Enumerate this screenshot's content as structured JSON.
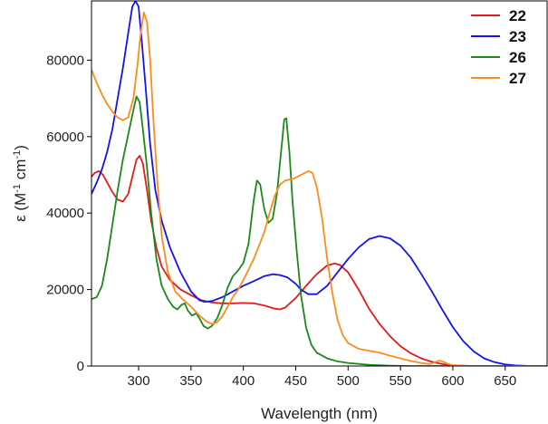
{
  "chart_data": {
    "type": "line",
    "title": "",
    "xlabel": "Wavelength (nm)",
    "ylabel": {
      "prefix": "ε (M",
      "sup1": "-1",
      "mid": " cm",
      "sup2": "-1",
      "suffix": ")"
    },
    "xlim": [
      255,
      690
    ],
    "ylim": [
      0,
      95500
    ],
    "xticks": [
      300,
      350,
      400,
      450,
      500,
      550,
      600,
      650
    ],
    "yticks": [
      0,
      20000,
      40000,
      60000,
      80000
    ],
    "grid": false,
    "legend_position": "top-right",
    "series": [
      {
        "name": "22",
        "color": "#e41a1c",
        "points": [
          [
            255,
            49500
          ],
          [
            258,
            50500
          ],
          [
            262,
            51000
          ],
          [
            266,
            50000
          ],
          [
            270,
            48000
          ],
          [
            275,
            45500
          ],
          [
            280,
            43500
          ],
          [
            285,
            43000
          ],
          [
            290,
            45000
          ],
          [
            294,
            49500
          ],
          [
            298,
            54000
          ],
          [
            301,
            55000
          ],
          [
            304,
            53000
          ],
          [
            308,
            46000
          ],
          [
            312,
            38000
          ],
          [
            317,
            31000
          ],
          [
            322,
            26000
          ],
          [
            330,
            22500
          ],
          [
            340,
            20000
          ],
          [
            350,
            18500
          ],
          [
            360,
            17200
          ],
          [
            370,
            16600
          ],
          [
            380,
            16400
          ],
          [
            390,
            16400
          ],
          [
            400,
            16500
          ],
          [
            410,
            16400
          ],
          [
            420,
            15800
          ],
          [
            430,
            15000
          ],
          [
            435,
            14800
          ],
          [
            440,
            15300
          ],
          [
            450,
            17800
          ],
          [
            460,
            21000
          ],
          [
            470,
            24000
          ],
          [
            480,
            26300
          ],
          [
            487,
            26800
          ],
          [
            492,
            26500
          ],
          [
            500,
            24500
          ],
          [
            510,
            20000
          ],
          [
            520,
            15000
          ],
          [
            530,
            11000
          ],
          [
            540,
            7800
          ],
          [
            550,
            5200
          ],
          [
            560,
            3300
          ],
          [
            570,
            2000
          ],
          [
            580,
            1100
          ],
          [
            590,
            500
          ],
          [
            600,
            200
          ],
          [
            620,
            0
          ],
          [
            690,
            0
          ]
        ]
      },
      {
        "name": "23",
        "color": "#1414e6",
        "points": [
          [
            255,
            45000
          ],
          [
            260,
            48000
          ],
          [
            265,
            51500
          ],
          [
            270,
            56000
          ],
          [
            275,
            62000
          ],
          [
            280,
            70000
          ],
          [
            285,
            78000
          ],
          [
            290,
            87000
          ],
          [
            294,
            94000
          ],
          [
            297,
            95500
          ],
          [
            300,
            94000
          ],
          [
            303,
            85000
          ],
          [
            307,
            72000
          ],
          [
            311,
            58000
          ],
          [
            316,
            46000
          ],
          [
            322,
            38000
          ],
          [
            330,
            31000
          ],
          [
            340,
            24500
          ],
          [
            350,
            19500
          ],
          [
            358,
            17200
          ],
          [
            363,
            16800
          ],
          [
            370,
            17000
          ],
          [
            380,
            18000
          ],
          [
            390,
            19500
          ],
          [
            400,
            21000
          ],
          [
            410,
            22200
          ],
          [
            420,
            23500
          ],
          [
            428,
            24000
          ],
          [
            435,
            23800
          ],
          [
            442,
            23200
          ],
          [
            450,
            21500
          ],
          [
            455,
            20000
          ],
          [
            462,
            18800
          ],
          [
            470,
            18800
          ],
          [
            480,
            21000
          ],
          [
            490,
            24500
          ],
          [
            500,
            28000
          ],
          [
            510,
            31000
          ],
          [
            520,
            33200
          ],
          [
            530,
            34000
          ],
          [
            540,
            33400
          ],
          [
            550,
            31500
          ],
          [
            560,
            28300
          ],
          [
            570,
            24000
          ],
          [
            580,
            19500
          ],
          [
            590,
            14700
          ],
          [
            600,
            10200
          ],
          [
            610,
            6500
          ],
          [
            620,
            3800
          ],
          [
            630,
            2000
          ],
          [
            640,
            1000
          ],
          [
            650,
            400
          ],
          [
            660,
            150
          ],
          [
            670,
            50
          ],
          [
            690,
            0
          ]
        ]
      },
      {
        "name": "26",
        "color": "#1a8a1a",
        "points": [
          [
            255,
            17500
          ],
          [
            260,
            18000
          ],
          [
            265,
            21000
          ],
          [
            270,
            28000
          ],
          [
            275,
            37000
          ],
          [
            280,
            46000
          ],
          [
            285,
            54000
          ],
          [
            290,
            60500
          ],
          [
            295,
            67000
          ],
          [
            298,
            70500
          ],
          [
            301,
            69000
          ],
          [
            304,
            62000
          ],
          [
            308,
            52000
          ],
          [
            312,
            40000
          ],
          [
            317,
            28000
          ],
          [
            322,
            21000
          ],
          [
            328,
            17500
          ],
          [
            333,
            15500
          ],
          [
            337,
            14800
          ],
          [
            341,
            16000
          ],
          [
            344,
            16400
          ],
          [
            347,
            14500
          ],
          [
            351,
            13200
          ],
          [
            355,
            13800
          ],
          [
            358,
            12500
          ],
          [
            362,
            10500
          ],
          [
            366,
            9800
          ],
          [
            370,
            10500
          ],
          [
            375,
            12500
          ],
          [
            380,
            16000
          ],
          [
            385,
            20500
          ],
          [
            390,
            23500
          ],
          [
            395,
            25000
          ],
          [
            400,
            27000
          ],
          [
            405,
            32000
          ],
          [
            410,
            43500
          ],
          [
            413,
            48500
          ],
          [
            416,
            47500
          ],
          [
            420,
            41000
          ],
          [
            424,
            37500
          ],
          [
            428,
            38500
          ],
          [
            432,
            45000
          ],
          [
            436,
            56000
          ],
          [
            439,
            64500
          ],
          [
            441,
            64800
          ],
          [
            444,
            56000
          ],
          [
            447,
            43000
          ],
          [
            451,
            30000
          ],
          [
            455,
            18500
          ],
          [
            460,
            10000
          ],
          [
            465,
            5500
          ],
          [
            470,
            3500
          ],
          [
            480,
            2000
          ],
          [
            490,
            1200
          ],
          [
            500,
            800
          ],
          [
            520,
            300
          ],
          [
            540,
            100
          ],
          [
            560,
            0
          ],
          [
            690,
            0
          ]
        ]
      },
      {
        "name": "27",
        "color": "#ff8c1a",
        "points": [
          [
            255,
            77500
          ],
          [
            260,
            74000
          ],
          [
            265,
            71000
          ],
          [
            270,
            68500
          ],
          [
            275,
            66500
          ],
          [
            280,
            65000
          ],
          [
            285,
            64300
          ],
          [
            290,
            65000
          ],
          [
            295,
            70000
          ],
          [
            299,
            79000
          ],
          [
            302,
            87000
          ],
          [
            305,
            92500
          ],
          [
            308,
            90000
          ],
          [
            311,
            80000
          ],
          [
            314,
            65000
          ],
          [
            318,
            48000
          ],
          [
            322,
            34000
          ],
          [
            328,
            24500
          ],
          [
            335,
            19500
          ],
          [
            342,
            17500
          ],
          [
            350,
            15500
          ],
          [
            358,
            13200
          ],
          [
            365,
            11600
          ],
          [
            370,
            11000
          ],
          [
            375,
            11500
          ],
          [
            380,
            13000
          ],
          [
            385,
            15500
          ],
          [
            390,
            18000
          ],
          [
            395,
            20000
          ],
          [
            400,
            22500
          ],
          [
            410,
            28000
          ],
          [
            420,
            35000
          ],
          [
            425,
            40000
          ],
          [
            430,
            44500
          ],
          [
            435,
            47500
          ],
          [
            440,
            48500
          ],
          [
            448,
            49000
          ],
          [
            455,
            50000
          ],
          [
            462,
            51000
          ],
          [
            466,
            50500
          ],
          [
            470,
            47000
          ],
          [
            475,
            39000
          ],
          [
            480,
            28000
          ],
          [
            485,
            19000
          ],
          [
            490,
            12000
          ],
          [
            495,
            8000
          ],
          [
            500,
            6000
          ],
          [
            510,
            4500
          ],
          [
            520,
            4000
          ],
          [
            530,
            3500
          ],
          [
            540,
            2700
          ],
          [
            550,
            2000
          ],
          [
            560,
            1300
          ],
          [
            570,
            800
          ],
          [
            578,
            500
          ],
          [
            583,
            1000
          ],
          [
            587,
            1400
          ],
          [
            590,
            1200
          ],
          [
            595,
            600
          ],
          [
            600,
            200
          ],
          [
            610,
            0
          ],
          [
            690,
            0
          ]
        ]
      }
    ]
  }
}
